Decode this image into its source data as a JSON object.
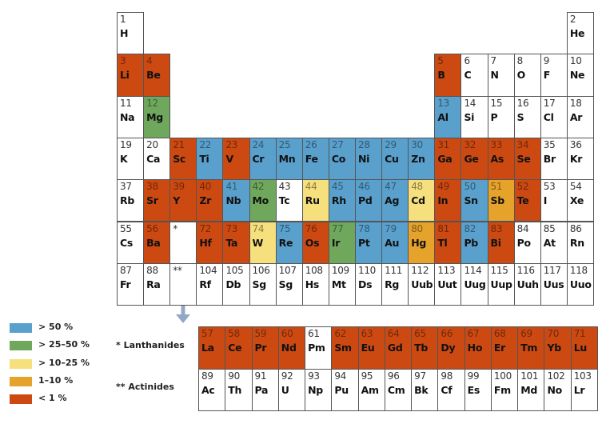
{
  "colors": {
    "b": "#5aa0cd",
    "g": "#6fa85c",
    "y": "#f6e07e",
    "o": "#e5a32b",
    "r": "#cc4912",
    "w": "#ffffff"
  },
  "legend": [
    {
      "key": "b",
      "label": "> 50 %"
    },
    {
      "key": "g",
      "label": "> 25–50 %"
    },
    {
      "key": "y",
      "label": "> 10–25 %"
    },
    {
      "key": "o",
      "label": "1–10 %"
    },
    {
      "key": "r",
      "label": "< 1 %"
    }
  ],
  "series_labels": {
    "lanthanides": "* Lanthanides",
    "actinides": "** Actinides"
  },
  "placeholders": {
    "lanthanides": "*",
    "actinides": "**"
  },
  "elements": [
    [
      1,
      "H",
      "w"
    ],
    [
      2,
      "He",
      "w"
    ],
    [
      3,
      "Li",
      "r"
    ],
    [
      4,
      "Be",
      "r"
    ],
    [
      5,
      "B",
      "r"
    ],
    [
      6,
      "C",
      "w"
    ],
    [
      7,
      "N",
      "w"
    ],
    [
      8,
      "O",
      "w"
    ],
    [
      9,
      "F",
      "w"
    ],
    [
      10,
      "Ne",
      "w"
    ],
    [
      11,
      "Na",
      "w"
    ],
    [
      12,
      "Mg",
      "g"
    ],
    [
      13,
      "Al",
      "b"
    ],
    [
      14,
      "Si",
      "w"
    ],
    [
      15,
      "P",
      "w"
    ],
    [
      16,
      "S",
      "w"
    ],
    [
      17,
      "Cl",
      "w"
    ],
    [
      18,
      "Ar",
      "w"
    ],
    [
      19,
      "K",
      "w"
    ],
    [
      20,
      "Ca",
      "w"
    ],
    [
      21,
      "Sc",
      "r"
    ],
    [
      22,
      "Ti",
      "b"
    ],
    [
      23,
      "V",
      "r"
    ],
    [
      24,
      "Cr",
      "b"
    ],
    [
      25,
      "Mn",
      "b"
    ],
    [
      26,
      "Fe",
      "b"
    ],
    [
      27,
      "Co",
      "b"
    ],
    [
      28,
      "Ni",
      "b"
    ],
    [
      29,
      "Cu",
      "b"
    ],
    [
      30,
      "Zn",
      "b"
    ],
    [
      31,
      "Ga",
      "r"
    ],
    [
      32,
      "Ge",
      "r"
    ],
    [
      33,
      "As",
      "r"
    ],
    [
      34,
      "Se",
      "r"
    ],
    [
      35,
      "Br",
      "w"
    ],
    [
      36,
      "Kr",
      "w"
    ],
    [
      37,
      "Rb",
      "w"
    ],
    [
      38,
      "Sr",
      "r"
    ],
    [
      39,
      "Y",
      "r"
    ],
    [
      40,
      "Zr",
      "r"
    ],
    [
      41,
      "Nb",
      "b"
    ],
    [
      42,
      "Mo",
      "g"
    ],
    [
      43,
      "Tc",
      "w"
    ],
    [
      44,
      "Ru",
      "y"
    ],
    [
      45,
      "Rh",
      "b"
    ],
    [
      46,
      "Pd",
      "b"
    ],
    [
      47,
      "Ag",
      "b"
    ],
    [
      48,
      "Cd",
      "y"
    ],
    [
      49,
      "In",
      "r"
    ],
    [
      50,
      "Sn",
      "b"
    ],
    [
      51,
      "Sb",
      "o"
    ],
    [
      52,
      "Te",
      "r"
    ],
    [
      53,
      "I",
      "w"
    ],
    [
      54,
      "Xe",
      "w"
    ],
    [
      55,
      "Cs",
      "w"
    ],
    [
      56,
      "Ba",
      "r"
    ],
    [
      57,
      "La",
      "r"
    ],
    [
      58,
      "Ce",
      "r"
    ],
    [
      59,
      "Pr",
      "r"
    ],
    [
      60,
      "Nd",
      "r"
    ],
    [
      61,
      "Pm",
      "w"
    ],
    [
      62,
      "Sm",
      "r"
    ],
    [
      63,
      "Eu",
      "r"
    ],
    [
      64,
      "Gd",
      "r"
    ],
    [
      65,
      "Tb",
      "r"
    ],
    [
      66,
      "Dy",
      "r"
    ],
    [
      67,
      "Ho",
      "r"
    ],
    [
      68,
      "Er",
      "r"
    ],
    [
      69,
      "Tm",
      "r"
    ],
    [
      70,
      "Yb",
      "r"
    ],
    [
      71,
      "Lu",
      "r"
    ],
    [
      72,
      "Hf",
      "r"
    ],
    [
      73,
      "Ta",
      "r"
    ],
    [
      74,
      "W",
      "y"
    ],
    [
      75,
      "Re",
      "b"
    ],
    [
      76,
      "Os",
      "r"
    ],
    [
      77,
      "Ir",
      "g"
    ],
    [
      78,
      "Pt",
      "b"
    ],
    [
      79,
      "Au",
      "b"
    ],
    [
      80,
      "Hg",
      "o"
    ],
    [
      81,
      "Tl",
      "r"
    ],
    [
      82,
      "Pb",
      "b"
    ],
    [
      83,
      "Bi",
      "r"
    ],
    [
      84,
      "Po",
      "w"
    ],
    [
      85,
      "At",
      "w"
    ],
    [
      86,
      "Rn",
      "w"
    ],
    [
      87,
      "Fr",
      "w"
    ],
    [
      88,
      "Ra",
      "w"
    ],
    [
      89,
      "Ac",
      "w"
    ],
    [
      90,
      "Th",
      "w"
    ],
    [
      91,
      "Pa",
      "w"
    ],
    [
      92,
      "U",
      "w"
    ],
    [
      93,
      "Np",
      "w"
    ],
    [
      94,
      "Pu",
      "w"
    ],
    [
      95,
      "Am",
      "w"
    ],
    [
      96,
      "Cm",
      "w"
    ],
    [
      97,
      "Bk",
      "w"
    ],
    [
      98,
      "Cf",
      "w"
    ],
    [
      99,
      "Es",
      "w"
    ],
    [
      100,
      "Fm",
      "w"
    ],
    [
      101,
      "Md",
      "w"
    ],
    [
      102,
      "No",
      "w"
    ],
    [
      103,
      "Lr",
      "w"
    ],
    [
      104,
      "Rf",
      "w"
    ],
    [
      105,
      "Db",
      "w"
    ],
    [
      106,
      "Sg",
      "w"
    ],
    [
      107,
      "Sg",
      "w"
    ],
    [
      108,
      "Hs",
      "w"
    ],
    [
      109,
      "Mt",
      "w"
    ],
    [
      110,
      "Ds",
      "w"
    ],
    [
      111,
      "Rg",
      "w"
    ],
    [
      112,
      "Uub",
      "w"
    ],
    [
      113,
      "Uut",
      "w"
    ],
    [
      114,
      "Uug",
      "w"
    ],
    [
      115,
      "Uup",
      "w"
    ],
    [
      116,
      "Uuh",
      "w"
    ],
    [
      117,
      "Uus",
      "w"
    ],
    [
      118,
      "Uuo",
      "w"
    ]
  ]
}
